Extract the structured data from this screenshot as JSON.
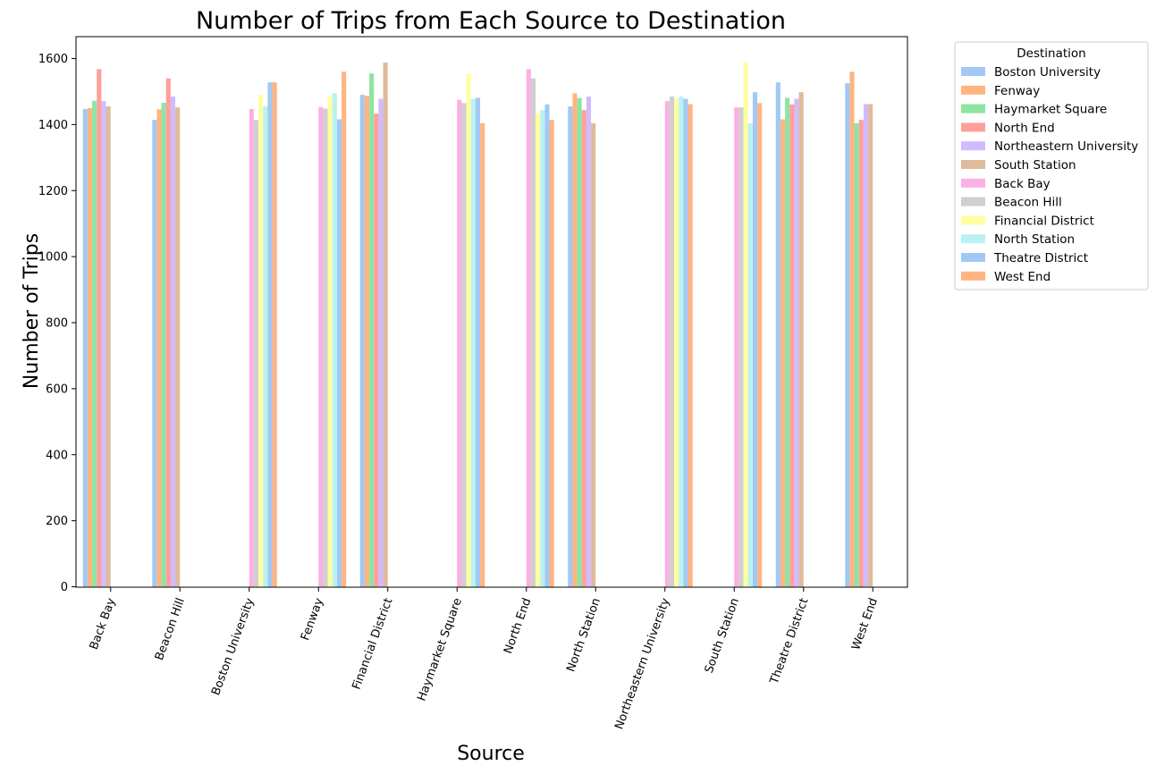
{
  "chart_data": {
    "type": "bar",
    "title": "Number of Trips from Each Source to Destination",
    "xlabel": "Source",
    "ylabel": "Number of Trips",
    "ylim": [
      0,
      1670
    ],
    "yticks": [
      0,
      200,
      400,
      600,
      800,
      1000,
      1200,
      1400,
      1600
    ],
    "grid": false,
    "legend_title": "Destination",
    "legend_position": "outside-top-right",
    "categories": [
      "Back Bay",
      "Beacon Hill",
      "Boston University",
      "Fenway",
      "Financial District",
      "Haymarket Square",
      "North End",
      "North Station",
      "Northeastern University",
      "South Station",
      "Theatre District",
      "West End"
    ],
    "series": [
      {
        "name": "Boston University",
        "color": "#a1c9f4",
        "values": [
          1447,
          1414,
          null,
          null,
          1490,
          null,
          null,
          1455,
          null,
          null,
          1528,
          1525
        ]
      },
      {
        "name": "Fenway",
        "color": "#ffb482",
        "values": [
          1450,
          1446,
          null,
          null,
          1487,
          null,
          null,
          1495,
          null,
          null,
          1416,
          1560
        ]
      },
      {
        "name": "Haymarket Square",
        "color": "#8de5a1",
        "values": [
          1472,
          1466,
          null,
          null,
          1555,
          null,
          null,
          1480,
          null,
          null,
          1481,
          1404
        ]
      },
      {
        "name": "North End",
        "color": "#ff9f9b",
        "values": [
          1568,
          1540,
          null,
          null,
          1433,
          null,
          null,
          1444,
          null,
          null,
          1461,
          1414
        ]
      },
      {
        "name": "Northeastern University",
        "color": "#d0bbff",
        "values": [
          1471,
          1485,
          null,
          null,
          1478,
          null,
          null,
          1485,
          null,
          null,
          1478,
          1462
        ]
      },
      {
        "name": "South Station",
        "color": "#debb9b",
        "values": [
          1455,
          1452,
          null,
          null,
          1588,
          null,
          null,
          1404,
          null,
          null,
          1498,
          1462
        ]
      },
      {
        "name": "Back Bay",
        "color": "#fab0e4",
        "values": [
          null,
          null,
          1447,
          1453,
          null,
          1475,
          1568,
          null,
          1471,
          1452,
          null,
          null
        ]
      },
      {
        "name": "Beacon Hill",
        "color": "#cfcfcf",
        "values": [
          null,
          null,
          1414,
          1448,
          null,
          1465,
          1540,
          null,
          1485,
          1452,
          null,
          null
        ]
      },
      {
        "name": "Financial District",
        "color": "#fffea3",
        "values": [
          null,
          null,
          1490,
          1486,
          null,
          1555,
          1433,
          null,
          1478,
          1588,
          null,
          null
        ]
      },
      {
        "name": "North Station",
        "color": "#b9f2f0",
        "values": [
          null,
          null,
          1455,
          1495,
          null,
          1478,
          1444,
          null,
          1485,
          1404,
          null,
          null
        ]
      },
      {
        "name": "Theatre District",
        "color": "#a1c9f4",
        "values": [
          null,
          null,
          1528,
          1416,
          null,
          1481,
          1461,
          null,
          1478,
          1498,
          null,
          null
        ]
      },
      {
        "name": "West End",
        "color": "#ffb482",
        "values": [
          null,
          null,
          1528,
          1560,
          null,
          1404,
          1414,
          null,
          1462,
          1465,
          null,
          null
        ]
      }
    ]
  }
}
